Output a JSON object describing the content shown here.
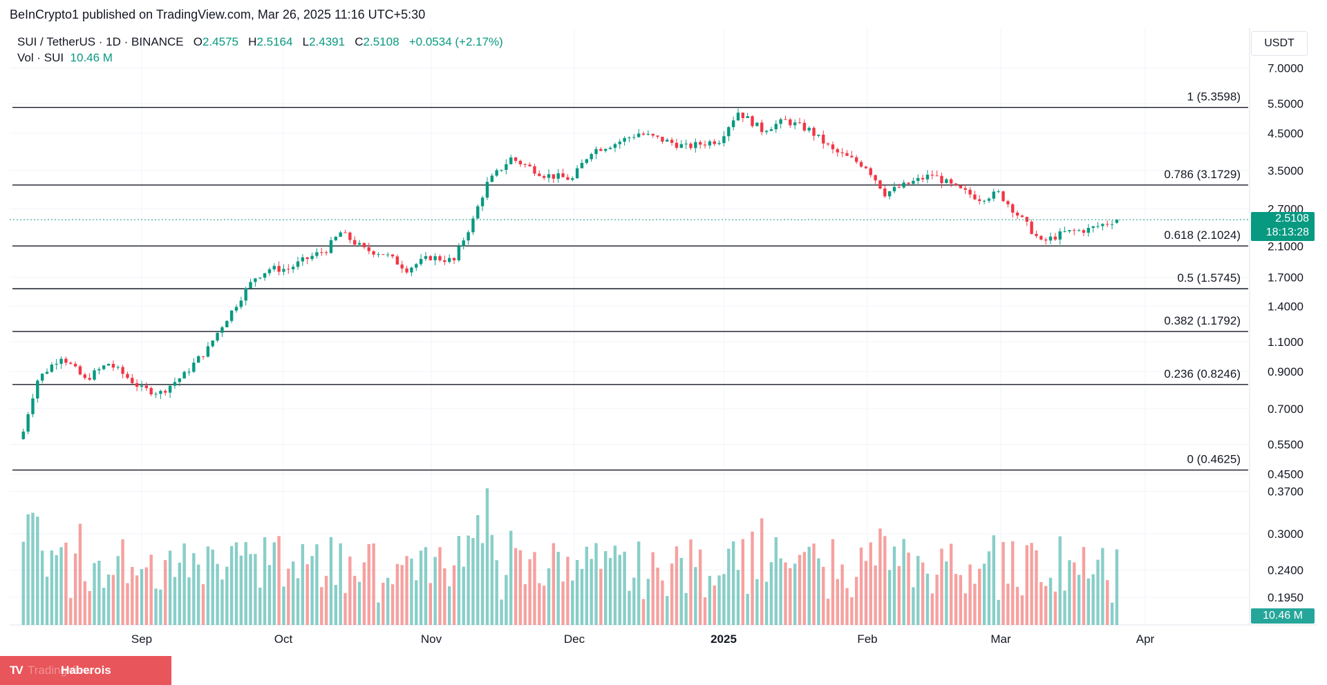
{
  "published": "BeInCrypto1 published on TradingView.com, Mar 26, 2025 11:16 UTC+5:30",
  "legend": {
    "symbol": "SUI / TetherUS · 1D · BINANCE",
    "o_label": "O",
    "o": "2.4575",
    "h_label": "H",
    "h": "2.5164",
    "l_label": "L",
    "l": "2.4391",
    "c_label": "C",
    "c": "2.5108",
    "change": "+0.0534 (+2.17%)",
    "vol_label": "Vol · SUI",
    "vol": "10.46 M"
  },
  "currency": "USDT",
  "price_tag": {
    "price": "2.5108",
    "countdown": "18:13:28"
  },
  "volume_tag": "10.46 M",
  "watermark": {
    "logo": "TV",
    "text": "TradingView",
    "name": "Haberois"
  },
  "colors": {
    "up": "#089981",
    "down": "#f23645",
    "vol_up": "#26a69a",
    "vol_down": "#ef5350"
  },
  "chart_data": {
    "type": "candlestick",
    "symbol": "SUI/USDT",
    "interval": "1D",
    "scale": "log",
    "x_labels": [
      "Sep",
      "Oct",
      "Nov",
      "Dec",
      "2025",
      "Feb",
      "Mar",
      "Apr"
    ],
    "price_ticks": [
      "7.0000",
      "5.5000",
      "4.5000",
      "3.5000",
      "2.7000",
      "2.1000",
      "1.7000",
      "1.4000",
      "1.1000",
      "0.9000",
      "0.7000",
      "0.5500",
      "0.4500"
    ],
    "volume_ticks": [
      "0.3700",
      "0.3000",
      "0.2400",
      "0.1950"
    ],
    "last_price": 2.5108,
    "fib_levels": [
      {
        "ratio": "1",
        "value": 5.3598,
        "label": "1 (5.3598)"
      },
      {
        "ratio": "0.786",
        "value": 3.1729,
        "label": "0.786 (3.1729)"
      },
      {
        "ratio": "0.618",
        "value": 2.1024,
        "label": "0.618 (2.1024)"
      },
      {
        "ratio": "0.5",
        "value": 1.5745,
        "label": "0.5 (1.5745)"
      },
      {
        "ratio": "0.382",
        "value": 1.1792,
        "label": "0.382 (1.1792)"
      },
      {
        "ratio": "0.236",
        "value": 0.8246,
        "label": "0.236 (0.8246)"
      },
      {
        "ratio": "0",
        "value": 0.4625,
        "label": "0 (0.4625)"
      }
    ],
    "price_path_approx": [
      [
        "2024-08-07",
        0.6
      ],
      [
        "2024-08-10",
        0.85
      ],
      [
        "2024-08-15",
        1.0
      ],
      [
        "2024-08-20",
        0.85
      ],
      [
        "2024-08-25",
        0.95
      ],
      [
        "2024-09-01",
        0.8
      ],
      [
        "2024-09-05",
        0.78
      ],
      [
        "2024-09-10",
        0.88
      ],
      [
        "2024-09-15",
        1.05
      ],
      [
        "2024-09-20",
        1.35
      ],
      [
        "2024-09-25",
        1.7
      ],
      [
        "2024-09-28",
        1.8
      ],
      [
        "2024-10-02",
        1.8
      ],
      [
        "2024-10-05",
        1.9
      ],
      [
        "2024-10-10",
        2.05
      ],
      [
        "2024-10-13",
        2.3
      ],
      [
        "2024-10-18",
        2.05
      ],
      [
        "2024-10-22",
        2.0
      ],
      [
        "2024-10-27",
        1.8
      ],
      [
        "2024-11-01",
        1.95
      ],
      [
        "2024-11-06",
        1.9
      ],
      [
        "2024-11-10",
        2.5
      ],
      [
        "2024-11-13",
        3.2
      ],
      [
        "2024-11-18",
        3.8
      ],
      [
        "2024-11-25",
        3.4
      ],
      [
        "2024-12-01",
        3.3
      ],
      [
        "2024-12-05",
        4.0
      ],
      [
        "2024-12-10",
        4.2
      ],
      [
        "2024-12-15",
        4.5
      ],
      [
        "2024-12-20",
        4.3
      ],
      [
        "2024-12-25",
        4.1
      ],
      [
        "2025-01-01",
        4.3
      ],
      [
        "2025-01-05",
        5.2
      ],
      [
        "2025-01-10",
        4.6
      ],
      [
        "2025-01-15",
        4.9
      ],
      [
        "2025-01-20",
        4.6
      ],
      [
        "2025-01-25",
        4.0
      ],
      [
        "2025-02-01",
        3.6
      ],
      [
        "2025-02-05",
        3.0
      ],
      [
        "2025-02-10",
        3.2
      ],
      [
        "2025-02-15",
        3.4
      ],
      [
        "2025-02-20",
        3.1
      ],
      [
        "2025-02-25",
        2.9
      ],
      [
        "2025-03-01",
        3.0
      ],
      [
        "2025-03-05",
        2.6
      ],
      [
        "2025-03-10",
        2.15
      ],
      [
        "2025-03-15",
        2.3
      ],
      [
        "2025-03-20",
        2.35
      ],
      [
        "2025-03-26",
        2.51
      ]
    ]
  }
}
